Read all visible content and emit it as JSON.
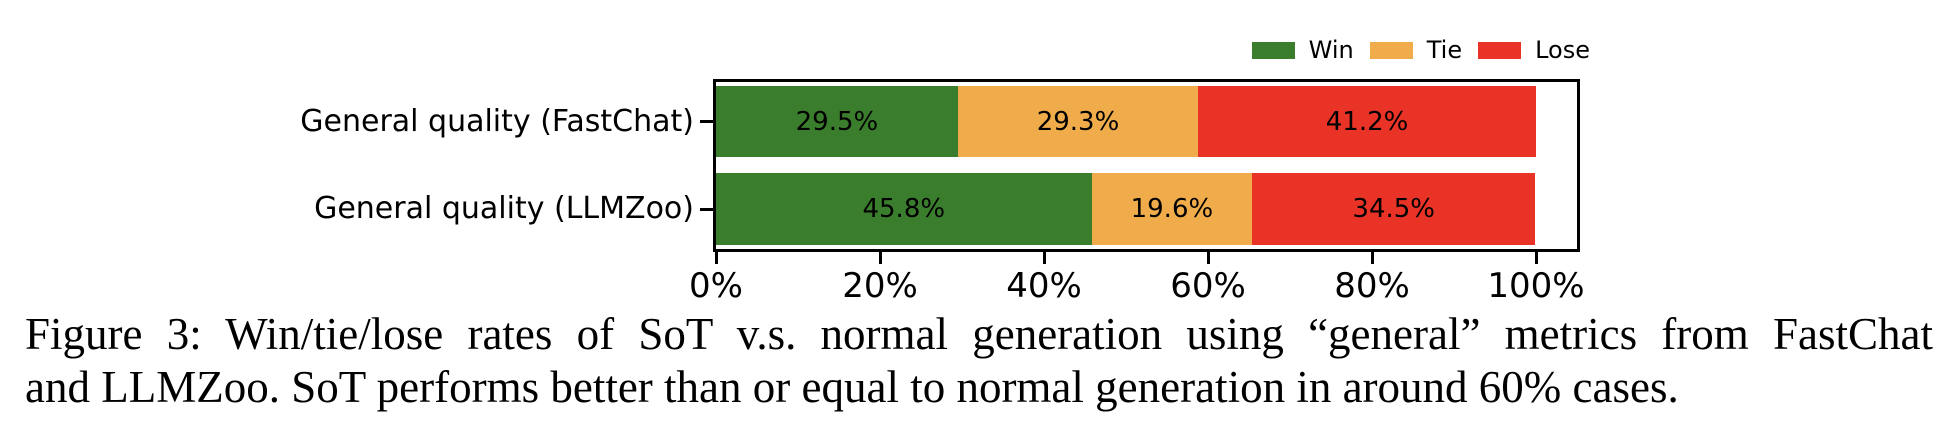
{
  "chart_data": {
    "type": "bar",
    "orientation": "horizontal",
    "stacked": true,
    "title": "",
    "xlabel": "",
    "ylabel": "",
    "categories": [
      "General quality (FastChat)",
      "General quality (LLMZoo)"
    ],
    "series": [
      {
        "name": "Win",
        "color": "#3a7d2c",
        "values": [
          29.5,
          45.8
        ]
      },
      {
        "name": "Tie",
        "color": "#f0ac4a",
        "values": [
          29.3,
          19.6
        ]
      },
      {
        "name": "Lose",
        "color": "#e93327",
        "values": [
          41.2,
          34.5
        ]
      }
    ],
    "segment_labels": [
      [
        "29.5%",
        "29.3%",
        "41.2%"
      ],
      [
        "45.8%",
        "19.6%",
        "34.5%"
      ]
    ],
    "x_tick_labels": [
      "0%",
      "20%",
      "40%",
      "60%",
      "80%",
      "100%"
    ],
    "x_tick_values": [
      0,
      20,
      40,
      60,
      80,
      100
    ],
    "xlim": [
      0,
      105
    ],
    "grid": false,
    "legend": {
      "position": "upper-right",
      "labels": [
        "Win",
        "Tie",
        "Lose"
      ]
    },
    "axis_color": "#000000"
  },
  "figure": {
    "caption_lines": [
      "Figure 3: Win/tie/lose rates of SoT v.s. normal generation using “general” metrics from FastChat",
      "and LLMZoo. SoT performs better than or equal to normal generation in around 60% cases."
    ]
  }
}
